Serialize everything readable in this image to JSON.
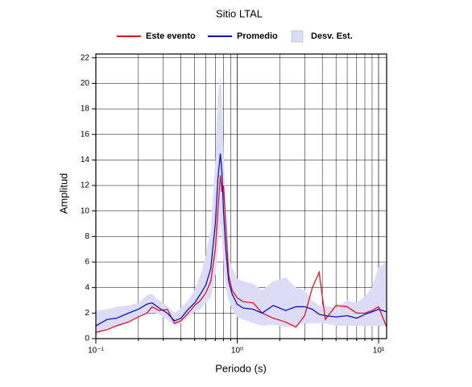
{
  "chart_data": {
    "type": "line",
    "title": "Sitio LTAL",
    "xlabel": "Periodo (s)",
    "ylabel": "Amplitud",
    "x": [
      0.1,
      0.12,
      0.14,
      0.17,
      0.2,
      0.23,
      0.25,
      0.28,
      0.32,
      0.36,
      0.4,
      0.45,
      0.5,
      0.55,
      0.6,
      0.65,
      0.7,
      0.73,
      0.76,
      0.78,
      0.8,
      0.83,
      0.87,
      0.92,
      1.0,
      1.1,
      1.3,
      1.5,
      1.8,
      2.2,
      2.6,
      3.0,
      3.4,
      3.8,
      4.2,
      5,
      6,
      7,
      8,
      9,
      10,
      11.4
    ],
    "series": [
      {
        "name": "Este evento",
        "color": "#e8121b",
        "values": [
          0.5,
          0.7,
          1.0,
          1.3,
          1.7,
          2.0,
          2.5,
          2.2,
          2.3,
          1.2,
          1.4,
          2.0,
          2.6,
          3.0,
          3.6,
          4.5,
          7,
          10,
          12.8,
          11.5,
          12,
          9,
          5,
          3.8,
          3.2,
          2.9,
          2.8,
          2.0,
          1.6,
          1.3,
          0.9,
          1.8,
          4.0,
          5.2,
          1.5,
          2.6,
          2.5,
          2.0,
          2.0,
          2.2,
          2.5,
          0.9
        ]
      },
      {
        "name": "Promedio",
        "color": "#1010d0",
        "values": [
          1.0,
          1.5,
          1.6,
          2.0,
          2.3,
          2.7,
          2.8,
          2.4,
          2.0,
          1.4,
          1.6,
          2.3,
          2.8,
          3.5,
          4.2,
          5.5,
          9,
          12.5,
          14.5,
          13,
          10,
          7,
          4.5,
          3.5,
          2.7,
          2.4,
          2.3,
          2.0,
          2.6,
          2.2,
          2.5,
          2.5,
          2.3,
          1.9,
          1.8,
          1.7,
          1.8,
          1.6,
          1.9,
          2.1,
          2.3,
          2.1
        ]
      },
      {
        "name": "Desv. Est.",
        "color": "#dcdcf6",
        "type": "band",
        "upper": [
          2.2,
          2.3,
          2.5,
          2.6,
          2.8,
          3.4,
          3.5,
          3.0,
          2.6,
          2.0,
          2.4,
          3.0,
          3.8,
          5,
          6.5,
          8.5,
          14,
          19,
          20.7,
          19,
          15,
          10,
          6.5,
          5.5,
          4.7,
          4.5,
          4.3,
          3.8,
          4.5,
          4.8,
          4.0,
          3.8,
          3.0,
          2.6,
          2.6,
          2.4,
          3.0,
          2.8,
          3.3,
          4.0,
          5.6,
          6.0
        ],
        "lower": [
          0.2,
          0.8,
          0.9,
          1.3,
          1.8,
          2.0,
          2.1,
          1.9,
          1.5,
          1.0,
          1.2,
          1.7,
          2.1,
          2.3,
          2.8,
          3.2,
          5,
          7,
          9,
          8,
          6,
          4,
          3,
          2.3,
          1.7,
          1.5,
          1.2,
          1.0,
          1.1,
          0.9,
          1.0,
          1.2,
          1.2,
          1.2,
          1.2,
          1.0,
          1.0,
          1.0,
          1.0,
          1.0,
          1.0,
          1.0
        ]
      }
    ],
    "xlog": true,
    "xlim": [
      0.1,
      11.4
    ],
    "ylim": [
      0,
      22.3
    ],
    "xticks": [
      {
        "value": 0.1,
        "label": "10⁻¹"
      },
      {
        "value": 1,
        "label": "10⁰"
      },
      {
        "value": 10,
        "label": "10¹"
      }
    ],
    "xminorticks": [
      0.2,
      0.3,
      0.4,
      0.5,
      0.6,
      0.7,
      0.8,
      0.9,
      2,
      3,
      4,
      5,
      6,
      7,
      8,
      9
    ],
    "yticks": [
      0,
      2,
      4,
      6,
      8,
      10,
      12,
      14,
      16,
      18,
      20,
      22
    ],
    "grid": true,
    "legend": "top"
  }
}
